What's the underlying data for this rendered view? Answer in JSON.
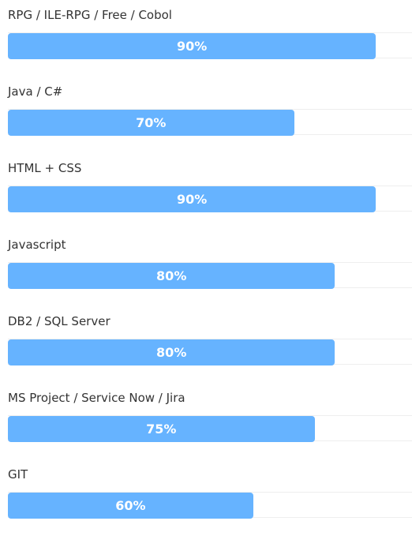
{
  "skills": [
    {
      "name": "RPG / ILE-RPG / Free / Cobol",
      "value": 90,
      "label": "90%"
    },
    {
      "name": "Java / C#",
      "value": 70,
      "label": "70%"
    },
    {
      "name": "HTML + CSS",
      "value": 90,
      "label": "90%"
    },
    {
      "name": "Javascript",
      "value": 80,
      "label": "80%"
    },
    {
      "name": "DB2 / SQL Server",
      "value": 80,
      "label": "80%"
    },
    {
      "name": "MS Project / Service Now / Jira",
      "value": 75,
      "label": "75%"
    },
    {
      "name": "GIT",
      "value": 60,
      "label": "60%"
    }
  ]
}
